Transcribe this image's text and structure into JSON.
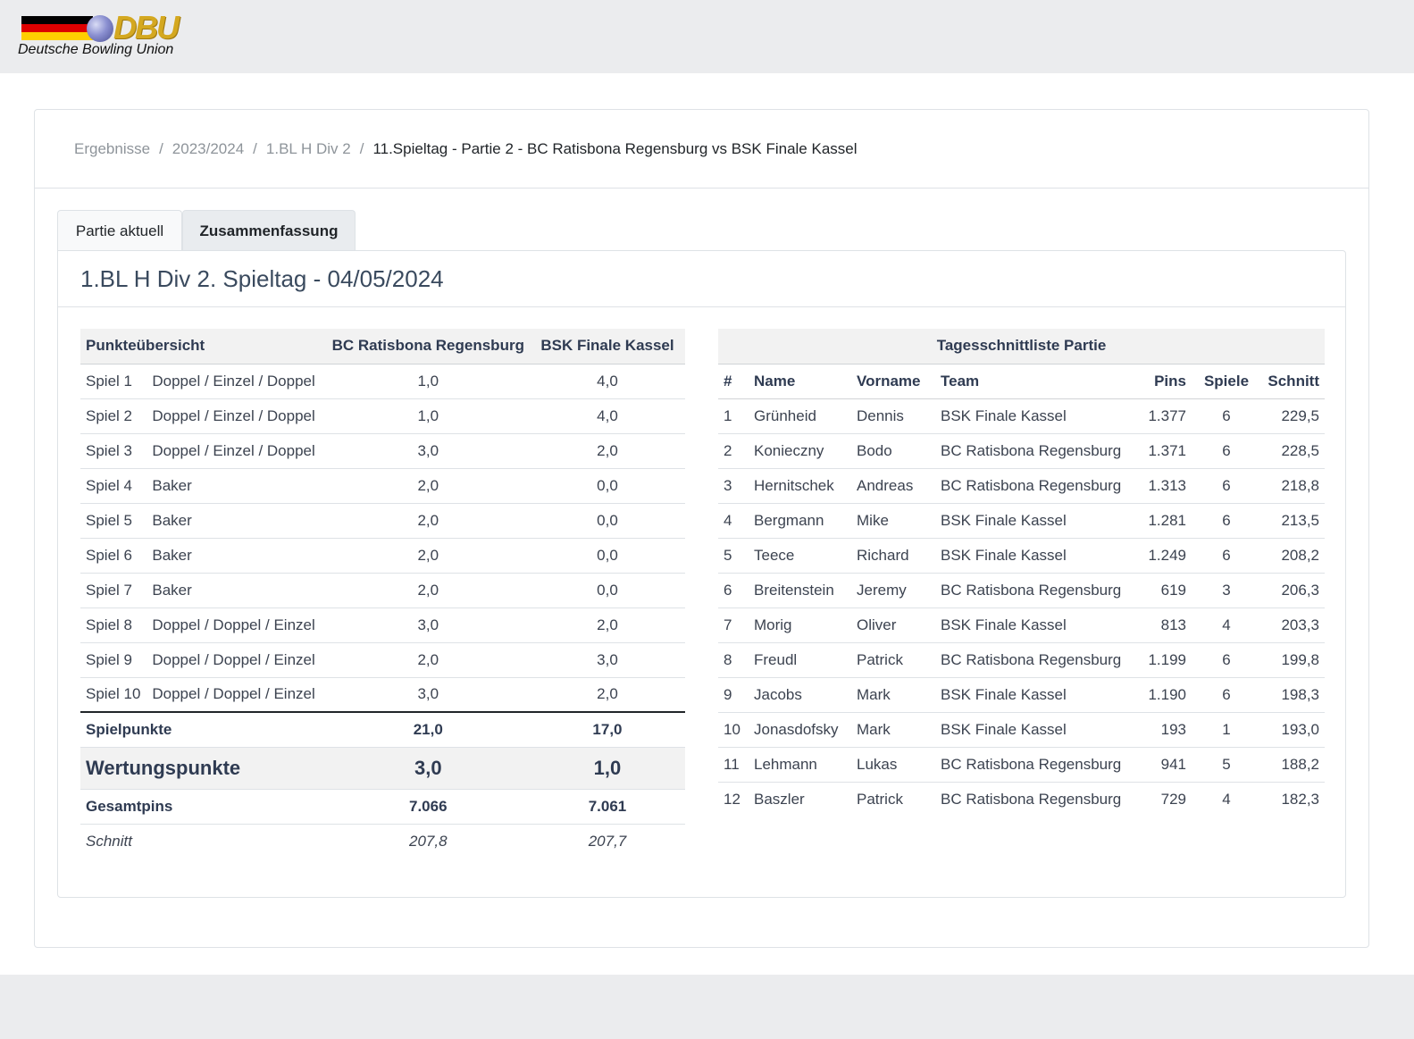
{
  "brand": {
    "logo_text": "DBU",
    "subtitle": "Deutsche Bowling Union",
    "flag_colors": [
      "#000000",
      "#dd0000",
      "#ffce00"
    ]
  },
  "breadcrumb": {
    "items": [
      "Ergebnisse",
      "2023/2024",
      "1.BL H Div 2"
    ],
    "separator": "/",
    "active": "11.Spieltag - Partie 2 - BC Ratisbona Regensburg vs BSK Finale Kassel"
  },
  "tabs": [
    {
      "label": "Partie aktuell",
      "active": false
    },
    {
      "label": "Zusammenfassung",
      "active": true
    }
  ],
  "section_title": "1.BL H Div 2. Spieltag - 04/05/2024",
  "points": {
    "header": [
      "Punkteübersicht",
      "BC Ratisbona Regensburg",
      "BSK Finale Kassel"
    ],
    "rows": [
      [
        "Spiel 1",
        "Doppel / Einzel / Doppel",
        "1,0",
        "4,0"
      ],
      [
        "Spiel 2",
        "Doppel / Einzel / Doppel",
        "1,0",
        "4,0"
      ],
      [
        "Spiel 3",
        "Doppel / Einzel / Doppel",
        "3,0",
        "2,0"
      ],
      [
        "Spiel 4",
        "Baker",
        "2,0",
        "0,0"
      ],
      [
        "Spiel 5",
        "Baker",
        "2,0",
        "0,0"
      ],
      [
        "Spiel 6",
        "Baker",
        "2,0",
        "0,0"
      ],
      [
        "Spiel 7",
        "Baker",
        "2,0",
        "0,0"
      ],
      [
        "Spiel 8",
        "Doppel / Doppel / Einzel",
        "3,0",
        "2,0"
      ],
      [
        "Spiel 9",
        "Doppel / Doppel / Einzel",
        "2,0",
        "3,0"
      ],
      [
        "Spiel 10",
        "Doppel / Doppel / Einzel",
        "3,0",
        "2,0"
      ]
    ],
    "spielpunkte": [
      "Spielpunkte",
      "21,0",
      "17,0"
    ],
    "wertungspunkte": [
      "Wertungspunkte",
      "3,0",
      "1,0"
    ],
    "gesamtpins": [
      "Gesamtpins",
      "7.066",
      "7.061"
    ],
    "schnitt": [
      "Schnitt",
      "207,8",
      "207,7"
    ]
  },
  "average_list": {
    "title": "Tagesschnittliste Partie",
    "columns": [
      "#",
      "Name",
      "Vorname",
      "Team",
      "Pins",
      "Spiele",
      "Schnitt"
    ],
    "rows": [
      [
        "1",
        "Grünheid",
        "Dennis",
        "BSK Finale Kassel",
        "1.377",
        "6",
        "229,5"
      ],
      [
        "2",
        "Konieczny",
        "Bodo",
        "BC Ratisbona Regensburg",
        "1.371",
        "6",
        "228,5"
      ],
      [
        "3",
        "Hernitschek",
        "Andreas",
        "BC Ratisbona Regensburg",
        "1.313",
        "6",
        "218,8"
      ],
      [
        "4",
        "Bergmann",
        "Mike",
        "BSK Finale Kassel",
        "1.281",
        "6",
        "213,5"
      ],
      [
        "5",
        "Teece",
        "Richard",
        "BSK Finale Kassel",
        "1.249",
        "6",
        "208,2"
      ],
      [
        "6",
        "Breitenstein",
        "Jeremy",
        "BC Ratisbona Regensburg",
        "619",
        "3",
        "206,3"
      ],
      [
        "7",
        "Morig",
        "Oliver",
        "BSK Finale Kassel",
        "813",
        "4",
        "203,3"
      ],
      [
        "8",
        "Freudl",
        "Patrick",
        "BC Ratisbona Regensburg",
        "1.199",
        "6",
        "199,8"
      ],
      [
        "9",
        "Jacobs",
        "Mark",
        "BSK Finale Kassel",
        "1.190",
        "6",
        "198,3"
      ],
      [
        "10",
        "Jonasdofsky",
        "Mark",
        "BSK Finale Kassel",
        "193",
        "1",
        "193,0"
      ],
      [
        "11",
        "Lehmann",
        "Lukas",
        "BC Ratisbona Regensburg",
        "941",
        "5",
        "188,2"
      ],
      [
        "12",
        "Baszler",
        "Patrick",
        "BC Ratisbona Regensburg",
        "729",
        "4",
        "182,3"
      ]
    ]
  }
}
